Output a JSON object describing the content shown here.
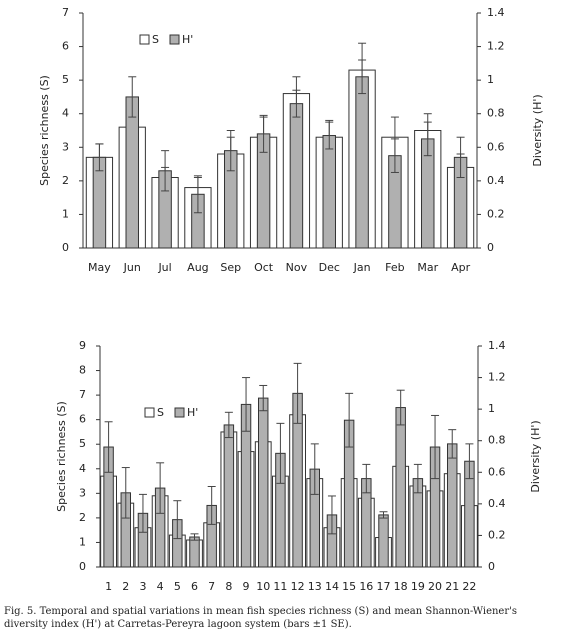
{
  "chart_data": [
    {
      "type": "bar",
      "y_label": "Species richness (S)",
      "y2_label": "Diversity (H')",
      "categories": [
        "May",
        "Jun",
        "Jul",
        "Aug",
        "Sep",
        "Oct",
        "Nov",
        "Dec",
        "Jan",
        "Feb",
        "Mar",
        "Apr"
      ],
      "series": [
        {
          "name": "S",
          "color": "#ffffff",
          "values": [
            2.7,
            3.6,
            2.1,
            1.8,
            2.8,
            3.3,
            4.6,
            3.3,
            5.3,
            3.3,
            3.5,
            2.4
          ],
          "errors": [
            0.4,
            0.5,
            0.3,
            0.3,
            0.5,
            0.6,
            0.5,
            0.5,
            0.8,
            0.6,
            0.5,
            0.4
          ]
        },
        {
          "name": "H'",
          "color": "#b0b0b0",
          "axis": "y2",
          "values": [
            0.54,
            0.9,
            0.46,
            0.32,
            0.58,
            0.68,
            0.86,
            0.67,
            1.02,
            0.55,
            0.65,
            0.54
          ],
          "errors": [
            0.08,
            0.12,
            0.12,
            0.11,
            0.12,
            0.11,
            0.08,
            0.08,
            0.1,
            0.1,
            0.1,
            0.12
          ]
        }
      ],
      "ylim": [
        0,
        7
      ],
      "yticks": [
        0,
        1,
        2,
        3,
        4,
        5,
        6,
        7
      ],
      "y2lim": [
        0,
        1.4
      ],
      "y2ticks": [
        0,
        0.2,
        0.4,
        0.6,
        0.8,
        1,
        1.2,
        1.4
      ],
      "legend": "upper left"
    },
    {
      "type": "bar",
      "y_label": "Species richness (S)",
      "y2_label": "Diversity (H')",
      "categories": [
        "1",
        "2",
        "3",
        "4",
        "5",
        "6",
        "7",
        "8",
        "9",
        "10",
        "11",
        "12",
        "13",
        "14",
        "15",
        "16",
        "17",
        "18",
        "19",
        "20",
        "21",
        "22"
      ],
      "series": [
        {
          "name": "S",
          "color": "#ffffff",
          "values": [
            3.7,
            2.6,
            1.6,
            2.9,
            1.3,
            1.1,
            1.8,
            5.5,
            4.7,
            5.1,
            3.7,
            6.2,
            3.6,
            1.6,
            3.6,
            2.8,
            1.2,
            4.1,
            3.3,
            3.1,
            3.8,
            2.5
          ]
        },
        {
          "name": "H'",
          "color": "#b0b0b0",
          "axis": "y2",
          "values": [
            0.76,
            0.47,
            0.34,
            0.5,
            0.3,
            0.19,
            0.39,
            0.9,
            1.03,
            1.07,
            0.72,
            1.1,
            0.62,
            0.33,
            0.93,
            0.56,
            0.33,
            1.01,
            0.56,
            0.76,
            0.78,
            0.67
          ],
          "errors": [
            0.16,
            0.16,
            0.12,
            0.16,
            0.12,
            0.02,
            0.12,
            0.08,
            0.17,
            0.08,
            0.19,
            0.19,
            0.16,
            0.12,
            0.17,
            0.09,
            0.02,
            0.11,
            0.09,
            0.2,
            0.09,
            0.11
          ]
        }
      ],
      "ylim": [
        0,
        9
      ],
      "yticks": [
        0,
        1,
        2,
        3,
        4,
        5,
        6,
        7,
        8,
        9
      ],
      "y2lim": [
        0,
        1.4
      ],
      "y2ticks": [
        0,
        0.2,
        0.4,
        0.6,
        0.8,
        1,
        1.2,
        1.4
      ],
      "legend": "upper left"
    }
  ],
  "caption": "Fig. 5. Temporal and spatial variations in mean fish species richness (S) and mean Shannon-Wiener's diversity index (H') at Carretas-Pereyra lagoon system (bars ±1 SE)."
}
